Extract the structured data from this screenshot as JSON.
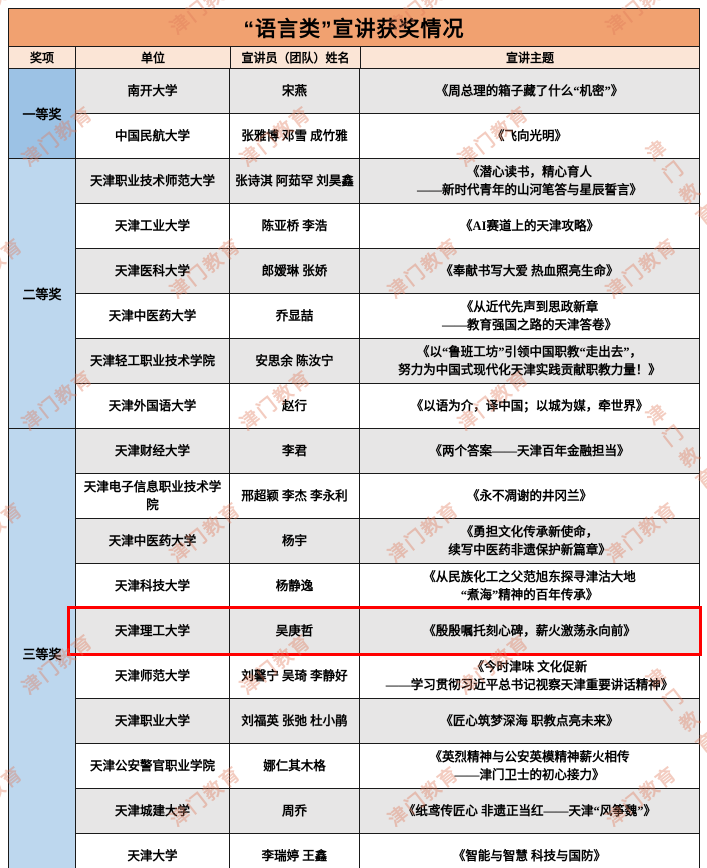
{
  "title": "“语言类”宣讲获奖情况",
  "columns": [
    "奖项",
    "单位",
    "宣讲员（团队）姓名",
    "宣讲主题"
  ],
  "groups": [
    {
      "award": "一等奖",
      "rows": [
        {
          "unit": "南开大学",
          "presenters": "宋燕",
          "topic": "《周总理的箱子藏了什么“机密”》"
        },
        {
          "unit": "中国民航大学",
          "presenters": "张雅博  邓雪  成竹雅",
          "topic": "《飞向光明》"
        }
      ]
    },
    {
      "award": "二等奖",
      "rows": [
        {
          "unit": "天津职业技术师范大学",
          "presenters": "张诗淇  阿茹罕  刘昊鑫",
          "topic": "《潜心读书，精心育人\n——新时代青年的山河笔答与星辰誓言》"
        },
        {
          "unit": "天津工业大学",
          "presenters": "陈亚桥  李浩",
          "topic": "《AI赛道上的天津攻略》"
        },
        {
          "unit": "天津医科大学",
          "presenters": "郎嫒琳  张娇",
          "topic": "《奉献书写大爱 热血照亮生命》"
        },
        {
          "unit": "天津中医药大学",
          "presenters": "乔显喆",
          "topic": "《从近代先声到思政新章\n——教育强国之路的天津答卷》"
        },
        {
          "unit": "天津轻工职业技术学院",
          "presenters": "安思余  陈汝宁",
          "topic": "《以“鲁班工坊”引领中国职教“走出去”，\n努力为中国式现代化天津实践贡献职教力量！》"
        },
        {
          "unit": "天津外国语大学",
          "presenters": "赵行",
          "topic": "《以语为介，译中国；以城为媒，牵世界》"
        }
      ]
    },
    {
      "award": "三等奖",
      "rows": [
        {
          "unit": "天津财经大学",
          "presenters": "李君",
          "topic": "《两个答案——天津百年金融担当》"
        },
        {
          "unit": "天津电子信息职业技术学院",
          "presenters": "邢超颖  李杰  李永利",
          "topic": "《永不凋谢的井冈兰》"
        },
        {
          "unit": "天津中医药大学",
          "presenters": "杨宇",
          "topic": "《勇担文化传承新使命，\n续写中医药非遗保护新篇章》"
        },
        {
          "unit": "天津科技大学",
          "presenters": "杨静逸",
          "topic": "《从民族化工之父范旭东探寻津沽大地\n“煮海”精神的百年传承》"
        },
        {
          "unit": "天津理工大学",
          "presenters": "吴庚哲",
          "topic": "《殷殷嘱托刻心碑，薪火激荡永向前》",
          "highlight": true
        },
        {
          "unit": "天津师范大学",
          "presenters": "刘馨宁  吴琦  李静好",
          "topic": "《今时津味  文化促新\n——学习贯彻习近平总书记视察天津重要讲话精神》"
        },
        {
          "unit": "天津职业大学",
          "presenters": "刘福英  张弛  杜小鹃",
          "topic": "《匠心筑梦深海  职教点亮未来》"
        },
        {
          "unit": "天津公安警官职业学院",
          "presenters": "娜仁其木格",
          "topic": "《英烈精神与公安英模精神薪火相传\n——津门卫士的初心接力》"
        },
        {
          "unit": "天津城建大学",
          "presenters": "周乔",
          "topic": "《纸鸢传匠心 非遗正当红——天津“风筝魏”》"
        },
        {
          "unit": "天津大学",
          "presenters": "李瑞婷  王鑫",
          "topic": "《智能与智慧  科技与国防》"
        }
      ]
    }
  ],
  "watermark": {
    "text": "津门教育"
  },
  "colors": {
    "title_bg": "#F1A170",
    "header_bg": "#FBE5D6",
    "award_first_bg": "#9CC2E5",
    "award_other_bg": "#BDD7EE",
    "row_alt_bg": "#E7E6E6",
    "highlight_border": "#FF0000",
    "watermark": "#E07A5B"
  }
}
